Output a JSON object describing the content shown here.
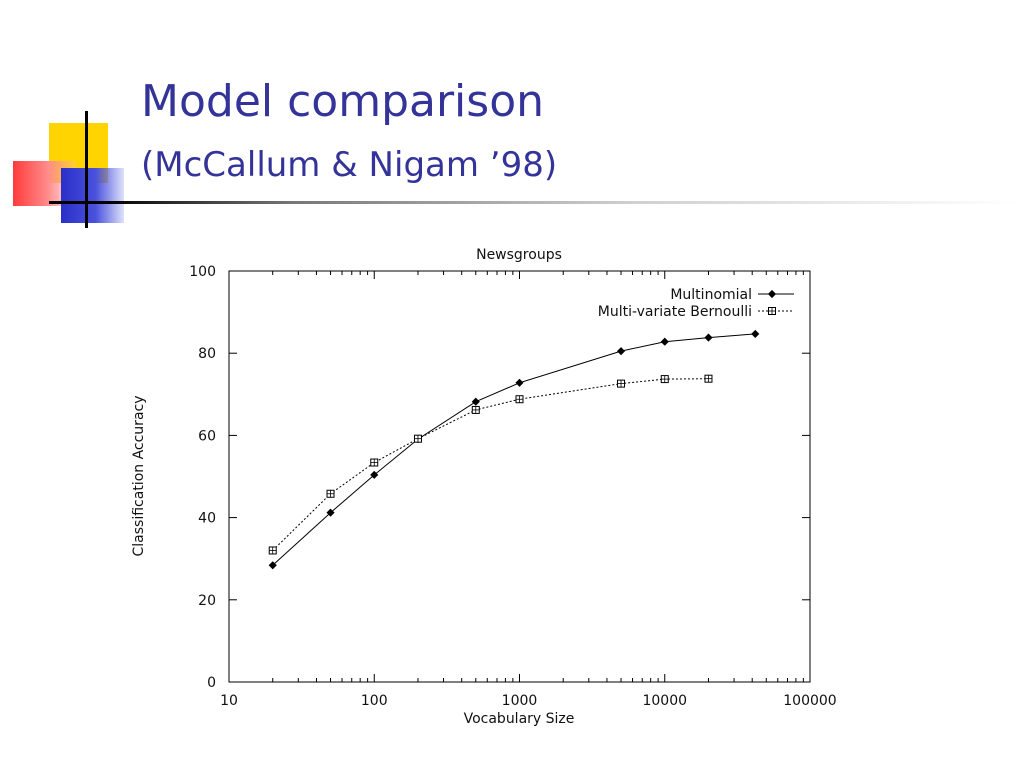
{
  "slide": {
    "title": "Model comparison",
    "subtitle": "(McCallum & Nigam ’98)"
  },
  "chart_data": {
    "type": "line",
    "title": "Newsgroups",
    "xlabel": "Vocabulary Size",
    "ylabel": "Classification Accuracy",
    "xscale": "log",
    "xlim": [
      10,
      100000
    ],
    "ylim": [
      0,
      100
    ],
    "grid": false,
    "legend_position": "top-right",
    "x_ticks": [
      {
        "value": 10,
        "label": "10"
      },
      {
        "value": 100,
        "label": "100"
      },
      {
        "value": 1000,
        "label": "1000"
      },
      {
        "value": 10000,
        "label": "10000"
      },
      {
        "value": 100000,
        "label": "100000"
      }
    ],
    "y_ticks": [
      {
        "value": 0,
        "label": "0"
      },
      {
        "value": 20,
        "label": "20"
      },
      {
        "value": 40,
        "label": "40"
      },
      {
        "value": 60,
        "label": "60"
      },
      {
        "value": 80,
        "label": "80"
      },
      {
        "value": 100,
        "label": "100"
      }
    ],
    "series": [
      {
        "name": "Multinomial",
        "line_style": "solid",
        "marker": "diamond",
        "points": [
          {
            "x": 20,
            "y": 28.4
          },
          {
            "x": 50,
            "y": 41.2
          },
          {
            "x": 100,
            "y": 50.4
          },
          {
            "x": 200,
            "y": 59.1
          },
          {
            "x": 500,
            "y": 68.2
          },
          {
            "x": 1000,
            "y": 72.8
          },
          {
            "x": 5000,
            "y": 80.5
          },
          {
            "x": 10000,
            "y": 82.8
          },
          {
            "x": 20000,
            "y": 83.8
          },
          {
            "x": 42000,
            "y": 84.7
          }
        ]
      },
      {
        "name": "Multi-variate Bernoulli",
        "line_style": "dotted",
        "marker": "square",
        "points": [
          {
            "x": 20,
            "y": 32.0
          },
          {
            "x": 50,
            "y": 45.8
          },
          {
            "x": 100,
            "y": 53.4
          },
          {
            "x": 200,
            "y": 59.2
          },
          {
            "x": 500,
            "y": 66.2
          },
          {
            "x": 1000,
            "y": 68.8
          },
          {
            "x": 5000,
            "y": 72.6
          },
          {
            "x": 10000,
            "y": 73.7
          },
          {
            "x": 20000,
            "y": 73.8
          }
        ]
      }
    ]
  }
}
